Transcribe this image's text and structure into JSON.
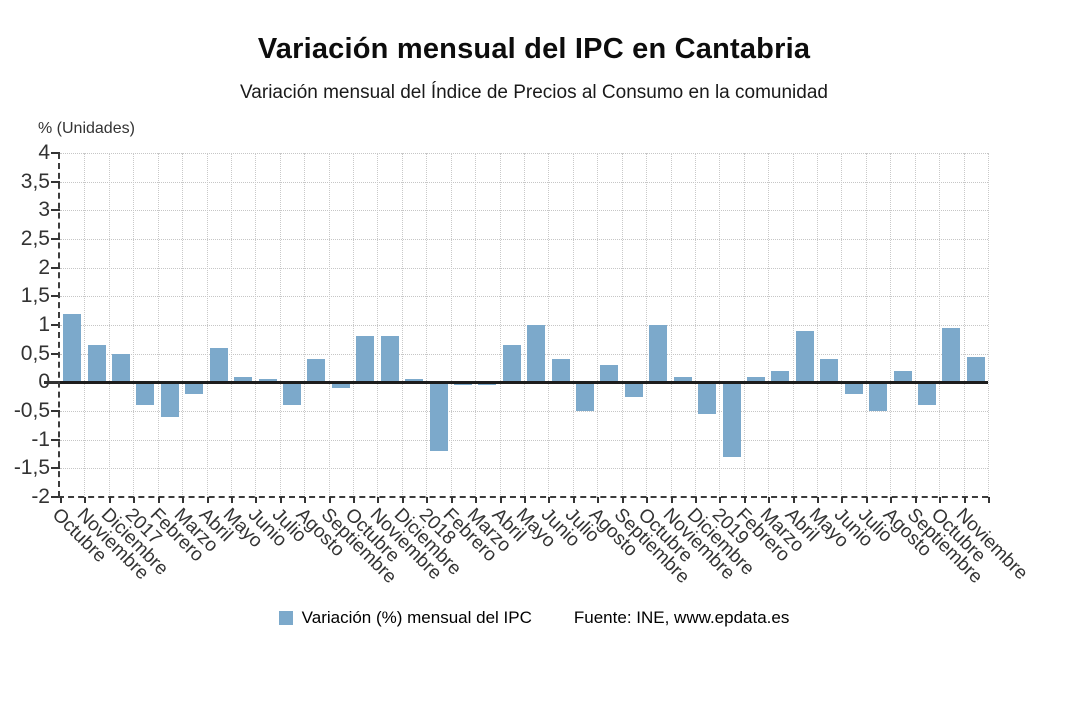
{
  "header": {
    "title": "Variación mensual del IPC en Cantabria",
    "subtitle": "Variación mensual del Índice de Precios al Consumo en la comunidad"
  },
  "legend": {
    "source": "Fuente: INE, www.epdata.es"
  },
  "colors": {
    "bar": "#7ca9cb",
    "grid": "#c9c9c9",
    "axis": "#3c3c3c",
    "zero_line": "#1d1d1d",
    "text": "#333333"
  },
  "chart_data": {
    "type": "bar",
    "title": "Variación mensual del IPC en Cantabria",
    "subtitle": "Variación mensual del Índice de Precios al Consumo en la comunidad",
    "y_axis_title": "% (Unidades)",
    "xlabel": "",
    "ylabel": "% (Unidades)",
    "ylim": [
      -2,
      4
    ],
    "y_tick_step": 0.5,
    "y_tick_labels": [
      "4",
      "3,5",
      "3",
      "2,5",
      "2",
      "1,5",
      "1",
      "0,5",
      "0",
      "-0,5",
      "-1",
      "-1,5",
      "-2"
    ],
    "grid": true,
    "legend_position": "bottom",
    "categories": [
      "Octubre",
      "Noviembre",
      "Diciembre",
      "2017",
      "Febrero",
      "Marzo",
      "Abril",
      "Mayo",
      "Junio",
      "Julio",
      "Agosto",
      "Septiembre",
      "Octubre",
      "Noviembre",
      "Diciembre",
      "2018",
      "Febrero",
      "Marzo",
      "Abril",
      "Mayo",
      "Junio",
      "Julio",
      "Agosto",
      "Septiembre",
      "Octubre",
      "Noviembre",
      "Diciembre",
      "2019",
      "Febrero",
      "Marzo",
      "Abril",
      "Mayo",
      "Junio",
      "Julio",
      "Agosto",
      "Septiembre",
      "Octubre",
      "Noviembre"
    ],
    "series": [
      {
        "name": "Variación (%) mensual del IPC",
        "color": "#7ca9cb",
        "values": [
          1.2,
          0.65,
          0.5,
          -0.4,
          -0.6,
          -0.2,
          0.6,
          0.1,
          0.0,
          -0.4,
          0.4,
          -0.1,
          0.8,
          0.8,
          0.05,
          -1.2,
          -0.05,
          -0.05,
          0.65,
          1.0,
          0.4,
          -0.5,
          0.3,
          -0.25,
          1.0,
          0.1,
          -0.55,
          -1.3,
          0.1,
          0.2,
          0.9,
          0.4,
          -0.2,
          -0.5,
          0.2,
          -0.4,
          0.95,
          0.45
        ]
      }
    ]
  }
}
